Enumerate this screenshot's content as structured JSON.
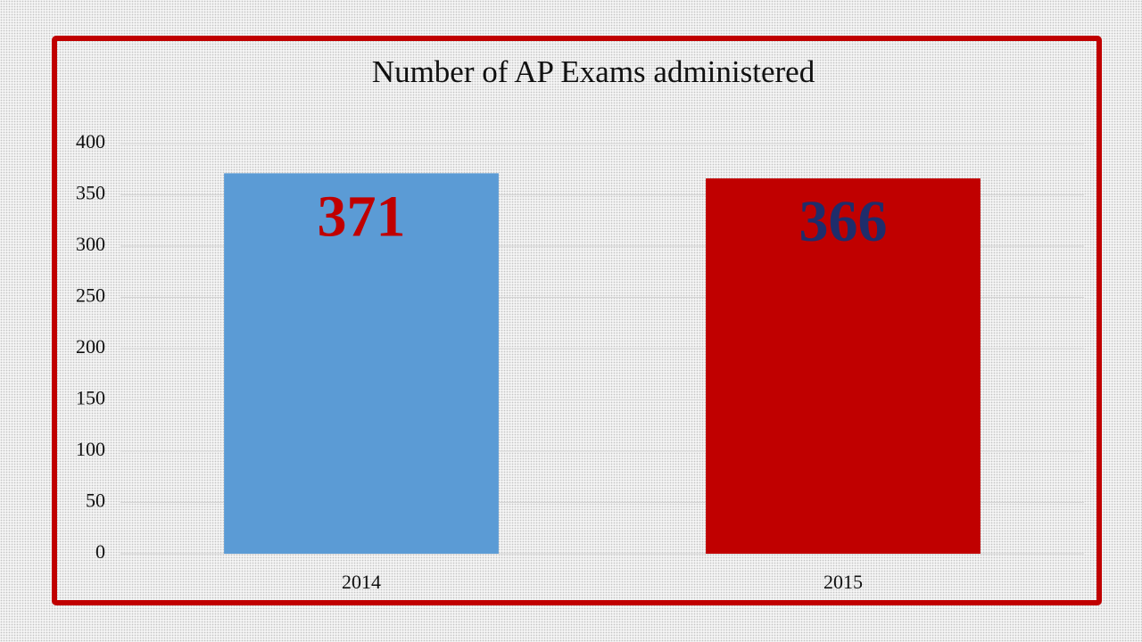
{
  "chart_data": {
    "type": "bar",
    "title": "Number of AP Exams administered",
    "categories": [
      "2014",
      "2015"
    ],
    "values": [
      371,
      366
    ],
    "colors": [
      "#5b9bd5",
      "#c00000"
    ],
    "value_label_colors": [
      "#c00000",
      "#1f2d6b"
    ],
    "ylim": [
      0,
      400
    ],
    "yticks": [
      0,
      50,
      100,
      150,
      200,
      250,
      300,
      350,
      400
    ],
    "grid": true
  }
}
